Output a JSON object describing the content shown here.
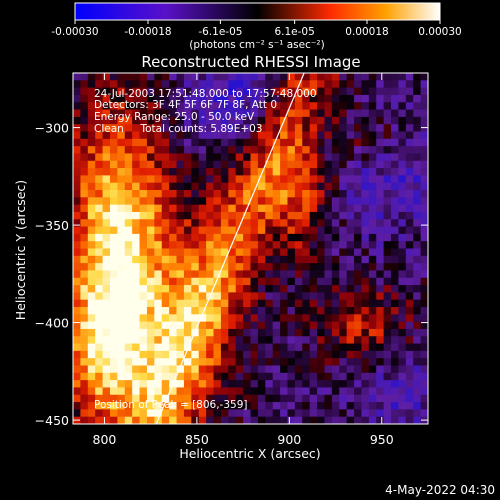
{
  "colorbar": {
    "tick_labels": [
      "-0.00030",
      "-0.00018",
      "-6.1e-05",
      "6.1e-05",
      "0.00018",
      "0.00030"
    ],
    "tick_values": [
      -0.0003,
      -0.00018,
      -6.1e-05,
      6.1e-05,
      0.00018,
      0.0003
    ],
    "units_label": "(photons cm⁻² s⁻¹ asec⁻²)",
    "range": [
      -0.0003,
      0.0003
    ]
  },
  "chart_data": {
    "type": "heatmap",
    "title": "Reconstructed RHESSI Image",
    "xlabel": "Heliocentric X (arcsec)",
    "ylabel": "Heliocentric Y (arcsec)",
    "xlim": [
      783,
      975
    ],
    "ylim": [
      -452,
      -272
    ],
    "x_ticks": [
      800,
      850,
      900,
      950
    ],
    "y_ticks": [
      -300,
      -350,
      -400,
      -450
    ],
    "x_tick_labels": [
      "800",
      "850",
      "900",
      "950"
    ],
    "y_tick_labels": [
      "−300",
      "−350",
      "−400",
      "−450"
    ],
    "annotations": [
      "24-Jul-2003 17:51:48.000 to 17:57:48.000",
      "Detectors: 3F 4F 5F 6F 7F 8F, Att 0",
      "Energy Range: 25.0 - 50.0 keV",
      "Clean     Total counts: 5.89E+03"
    ],
    "peak_label": "Position of Peak = [806,-359]",
    "peak_position": [
      806,
      -359
    ],
    "limb_line": {
      "x": [
        828,
        908
      ],
      "y": [
        -452,
        -272
      ]
    },
    "colormap": "diverging blue-purple-black-red-yellow-white"
  },
  "footer": {
    "date": "4-May-2022 04:30"
  }
}
